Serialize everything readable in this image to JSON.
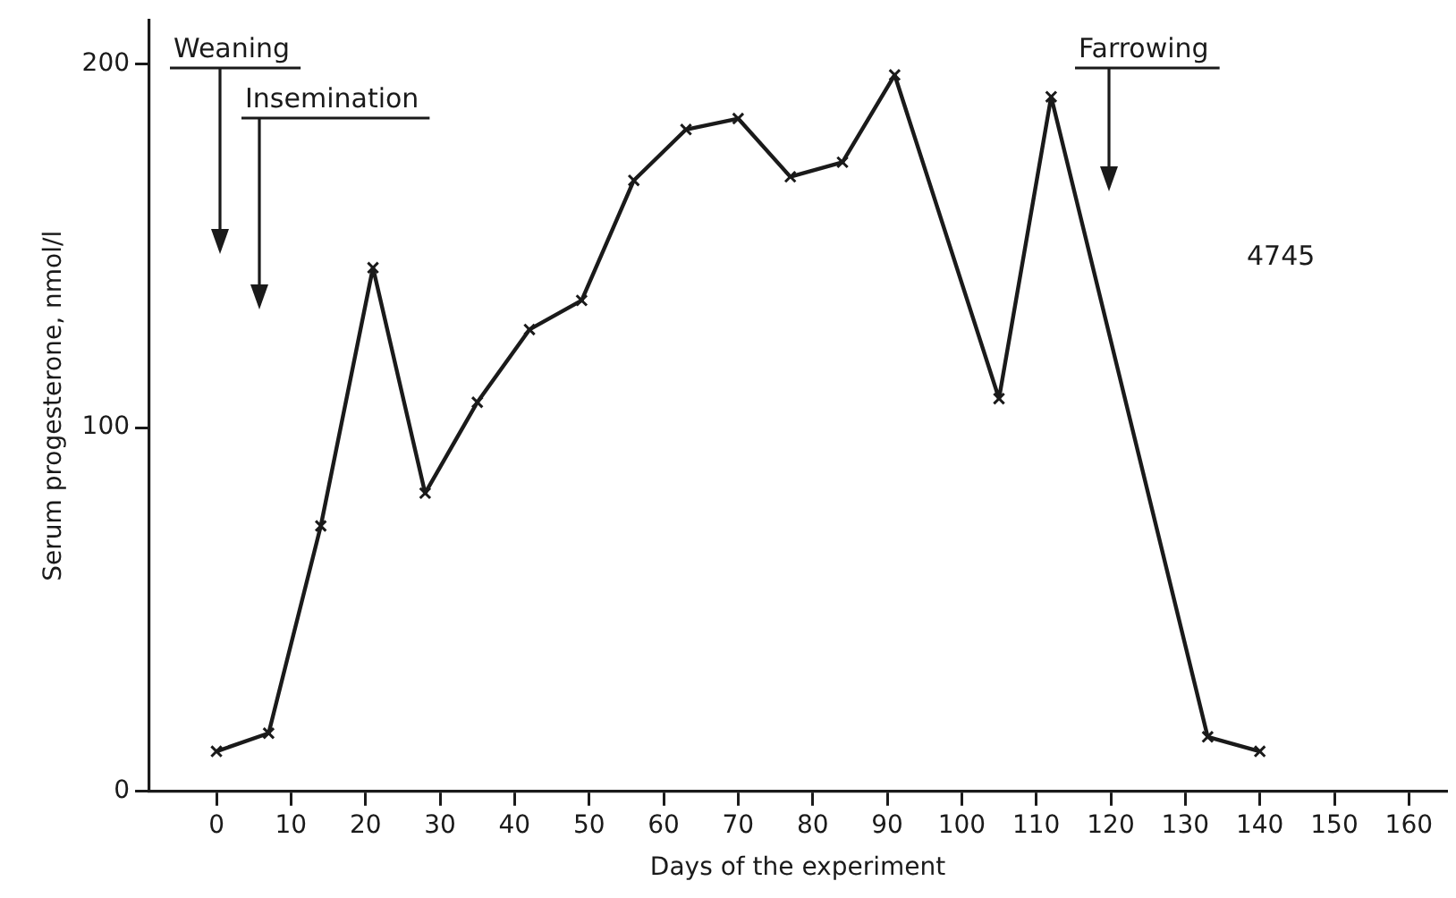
{
  "chart_data": {
    "type": "line",
    "xlabel": "Days of the experiment",
    "ylabel": "Serum progesterone, nmol/l",
    "x": [
      0,
      7,
      14,
      21,
      28,
      35,
      42,
      49,
      56,
      63,
      70,
      77,
      84,
      91,
      105,
      112,
      133,
      140
    ],
    "series": [
      {
        "color": "#1a1a1a",
        "values": [
          11,
          16,
          73,
          144,
          82,
          107,
          127,
          135,
          168,
          182,
          185,
          169,
          173,
          197,
          108,
          191,
          15,
          11
        ]
      }
    ],
    "xlim": [
      -9,
      165
    ],
    "xticks": [
      0,
      10,
      20,
      30,
      40,
      50,
      60,
      70,
      80,
      90,
      100,
      110,
      120,
      130,
      140,
      150,
      160
    ],
    "ylim": [
      0,
      212
    ],
    "yticks": [
      0,
      100,
      200
    ],
    "marker": "cross",
    "line_style": "solid",
    "grid": false,
    "legend": false,
    "annotations": [
      "Weaning",
      "Insemination",
      "Farrowing",
      "4745"
    ]
  }
}
